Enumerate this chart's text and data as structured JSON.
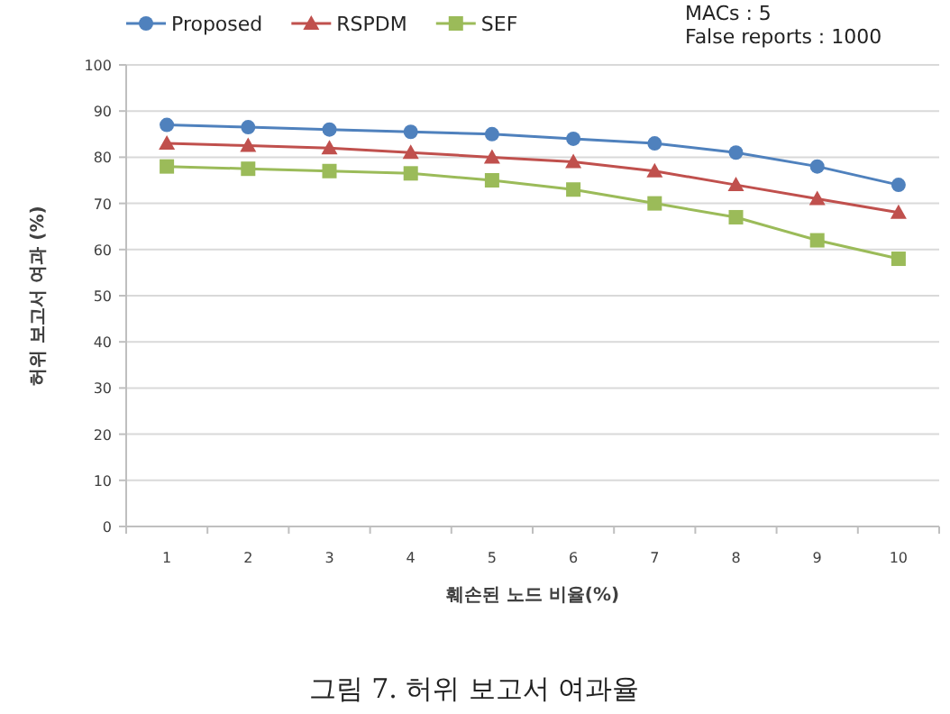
{
  "chart_data": {
    "type": "line",
    "xlabel": "훼손된 노드 비율(%)",
    "ylabel": "허위 보고서 여과 (%)",
    "categories": [
      "1",
      "2",
      "3",
      "4",
      "5",
      "6",
      "7",
      "8",
      "9",
      "10"
    ],
    "series": [
      {
        "name": "Proposed",
        "color": "#4f81bd",
        "marker": "circle",
        "values": [
          87,
          86.5,
          86,
          85.5,
          85,
          84,
          83,
          81,
          78,
          74
        ]
      },
      {
        "name": "RSPDM",
        "color": "#c0504d",
        "marker": "triangle",
        "values": [
          83,
          82.5,
          82,
          81,
          80,
          79,
          77,
          74,
          71,
          68
        ]
      },
      {
        "name": "SEF",
        "color": "#9bbb59",
        "marker": "square",
        "values": [
          78,
          77.5,
          77,
          76.5,
          75,
          73,
          70,
          67,
          62,
          58
        ]
      }
    ],
    "ylim": [
      0,
      100
    ],
    "yticks": [
      0,
      10,
      20,
      30,
      40,
      50,
      60,
      70,
      80,
      90,
      100
    ],
    "grid": "y",
    "legend": "top left",
    "line_style": "solid",
    "annotations": [
      "MACs : 5",
      "False reports : 1000",
      "그림 7. 허위 보고서 여과율"
    ]
  }
}
